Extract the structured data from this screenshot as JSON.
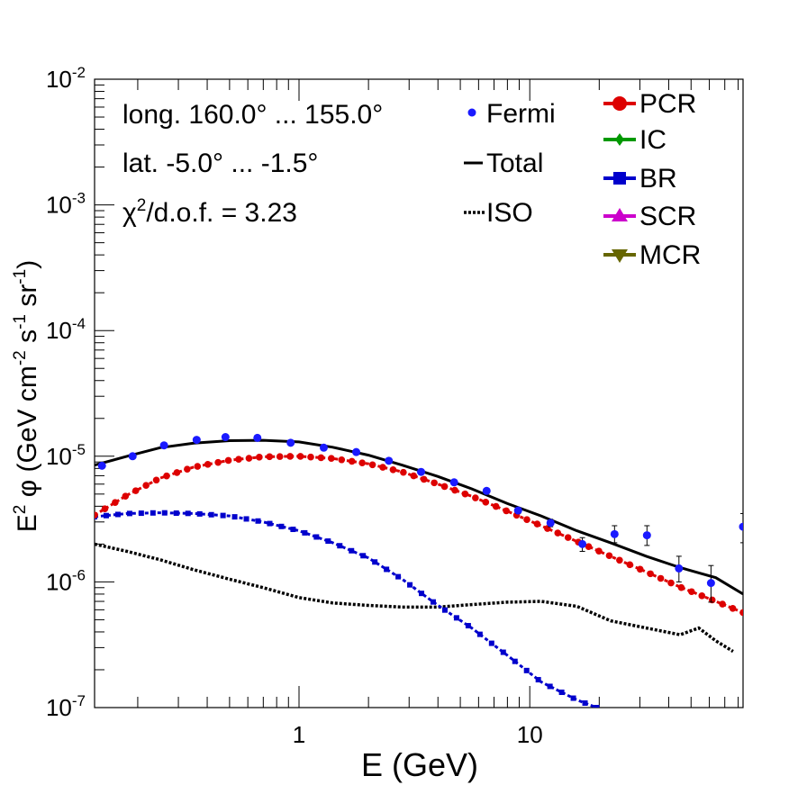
{
  "chart_data": {
    "type": "scatter",
    "xscale": "log",
    "yscale": "log",
    "xlim": [
      0.13,
      84
    ],
    "ylim": [
      1e-07,
      0.01
    ],
    "xlabel": "E (GeV)",
    "ylabel_parts": [
      "E",
      "2",
      " φ (GeV cm",
      "-2",
      " s",
      "-1",
      " sr",
      "-1",
      ")"
    ],
    "x_tick_labels": [
      {
        "value": 1,
        "label": "1"
      },
      {
        "value": 10,
        "label": "10"
      }
    ],
    "y_tick_labels": [
      {
        "value": 1e-07,
        "base": "10",
        "exp": "-7"
      },
      {
        "value": 1e-06,
        "base": "10",
        "exp": "-6"
      },
      {
        "value": 1e-05,
        "base": "10",
        "exp": "-5"
      },
      {
        "value": 0.0001,
        "base": "10",
        "exp": "-4"
      },
      {
        "value": 0.001,
        "base": "10",
        "exp": "-3"
      },
      {
        "value": 0.01,
        "base": "10",
        "exp": "-2"
      }
    ],
    "annotations": {
      "longitude": "long. 160.0° ... 155.0°",
      "latitude": "lat. -5.0° ... -1.5°",
      "chi2_prefix": "χ",
      "chi2_sup": "2",
      "chi2_suffix": "/d.o.f. = 3.23"
    },
    "legend_left": [
      {
        "label": "Fermi",
        "style": "point",
        "color": "#1a1aff"
      },
      {
        "label": "Total",
        "style": "solid",
        "color": "#000000"
      },
      {
        "label": "ISO",
        "style": "dotted",
        "color": "#000000"
      }
    ],
    "legend_right": [
      {
        "label": "PCR",
        "marker": "circle",
        "color": "#dd0000"
      },
      {
        "label": "IC",
        "marker": "diamond",
        "color": "#009900"
      },
      {
        "label": "BR",
        "marker": "square",
        "color": "#0000cc"
      },
      {
        "label": "SCR",
        "marker": "triangle-up",
        "color": "#cc00cc"
      },
      {
        "label": "MCR",
        "marker": "triangle-down",
        "color": "#666600"
      }
    ],
    "fermi": {
      "name": "Fermi",
      "color": "#1a1aff",
      "points": [
        {
          "x": 0.14,
          "y": 8.4e-06
        },
        {
          "x": 0.19,
          "y": 1e-05
        },
        {
          "x": 0.26,
          "y": 1.22e-05
        },
        {
          "x": 0.36,
          "y": 1.35e-05
        },
        {
          "x": 0.48,
          "y": 1.42e-05
        },
        {
          "x": 0.66,
          "y": 1.4e-05
        },
        {
          "x": 0.92,
          "y": 1.28e-05
        },
        {
          "x": 1.28,
          "y": 1.17e-05
        },
        {
          "x": 1.77,
          "y": 1.08e-05
        },
        {
          "x": 2.45,
          "y": 9.2e-06
        },
        {
          "x": 3.38,
          "y": 7.5e-06
        },
        {
          "x": 4.7,
          "y": 6.2e-06
        },
        {
          "x": 6.5,
          "y": 5.3e-06
        },
        {
          "x": 8.9,
          "y": 3.7e-06,
          "yerr_lo": 3.5e-06,
          "yerr_hi": 3.9e-06
        },
        {
          "x": 12.3,
          "y": 2.95e-06,
          "yerr_lo": 2.75e-06,
          "yerr_hi": 3.15e-06
        },
        {
          "x": 16.9,
          "y": 2e-06,
          "yerr_lo": 1.75e-06,
          "yerr_hi": 2.25e-06
        },
        {
          "x": 23.3,
          "y": 2.4e-06,
          "yerr_lo": 2.05e-06,
          "yerr_hi": 2.8e-06
        },
        {
          "x": 32.2,
          "y": 2.35e-06,
          "yerr_lo": 1.95e-06,
          "yerr_hi": 2.8e-06
        },
        {
          "x": 44.3,
          "y": 1.28e-06,
          "yerr_lo": 1e-06,
          "yerr_hi": 1.6e-06
        },
        {
          "x": 61.0,
          "y": 9.8e-07,
          "yerr_lo": 6.9e-07,
          "yerr_hi": 1.35e-06
        },
        {
          "x": 84.0,
          "y": 2.75e-06,
          "yerr_lo": 2.05e-06,
          "yerr_hi": 3.5e-06
        }
      ]
    },
    "total": {
      "name": "Total",
      "color": "#000000",
      "x": [
        0.13,
        0.18,
        0.25,
        0.35,
        0.5,
        0.7,
        1.0,
        1.4,
        2.0,
        2.8,
        4.0,
        5.6,
        8.0,
        11.2,
        16.0,
        22.4,
        32.0,
        44.8,
        64.0,
        84.0
      ],
      "y": [
        8.5e-06,
        1e-05,
        1.17e-05,
        1.27e-05,
        1.33e-05,
        1.34e-05,
        1.3e-05,
        1.18e-05,
        1.02e-05,
        8.5e-06,
        6.9e-06,
        5.5e-06,
        4.2e-06,
        3.35e-06,
        2.55e-06,
        2.05e-06,
        1.6e-06,
        1.3e-06,
        1.08e-06,
        8e-07
      ]
    },
    "iso": {
      "name": "ISO",
      "color": "#000000",
      "x": [
        0.13,
        0.18,
        0.25,
        0.35,
        0.5,
        0.7,
        1.0,
        1.4,
        2.0,
        2.8,
        4.0,
        5.6,
        8.0,
        11.2,
        16.0,
        22.4,
        32.0,
        44.8,
        54.0,
        64.0,
        76.0
      ],
      "y": [
        2e-06,
        1.75e-06,
        1.5e-06,
        1.25e-06,
        1.05e-06,
        9e-07,
        7.5e-07,
        6.8e-07,
        6.5e-07,
        6.3e-07,
        6.3e-07,
        6.6e-07,
        6.9e-07,
        7e-07,
        6.4e-07,
        4.9e-07,
        4.3e-07,
        3.8e-07,
        4.3e-07,
        3.4e-07,
        2.8e-07
      ]
    },
    "pcr": {
      "name": "PCR",
      "color": "#dd0000",
      "x": [
        0.13,
        0.18,
        0.25,
        0.35,
        0.5,
        0.7,
        1.0,
        1.4,
        2.0,
        2.8,
        4.0,
        5.6,
        8.0,
        11.2,
        16.0,
        22.4,
        32.0,
        44.8,
        64.0,
        84.0
      ],
      "y": [
        3.4e-06,
        4.9e-06,
        6.7e-06,
        8.2e-06,
        9.3e-06,
        9.9e-06,
        1e-05,
        9.6e-06,
        8.7e-06,
        7.5e-06,
        6e-06,
        4.8e-06,
        3.65e-06,
        2.8e-06,
        2.1e-06,
        1.6e-06,
        1.2e-06,
        9.1e-07,
        7e-07,
        5.7e-07
      ]
    },
    "br": {
      "name": "BR",
      "color": "#0000cc",
      "x": [
        0.13,
        0.18,
        0.25,
        0.35,
        0.5,
        0.7,
        1.0,
        1.4,
        2.0,
        2.8,
        4.0,
        5.6,
        8.0,
        11.2,
        16.0,
        19.5
      ],
      "y": [
        3.3e-06,
        3.5e-06,
        3.55e-06,
        3.5e-06,
        3.35e-06,
        3e-06,
        2.55e-06,
        2.05e-06,
        1.55e-06,
        1.05e-06,
        6.5e-07,
        4.3e-07,
        2.6e-07,
        1.6e-07,
        1.15e-07,
        1e-07
      ]
    }
  }
}
